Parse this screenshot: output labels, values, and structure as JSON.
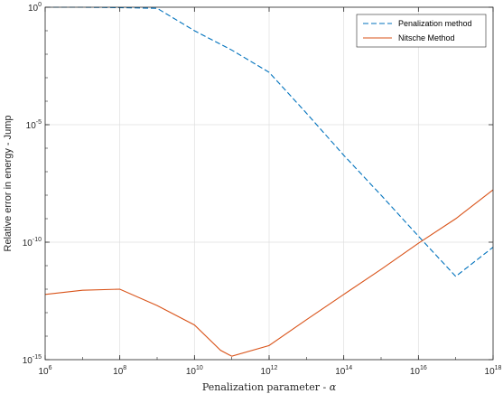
{
  "chart_data": {
    "type": "line",
    "xscale": "log",
    "yscale": "log",
    "xlim": [
      1000000.0,
      1e+18
    ],
    "ylim": [
      1e-15,
      1
    ],
    "xticks": [
      {
        "base": "10",
        "exp": "6",
        "value": 1000000.0
      },
      {
        "base": "10",
        "exp": "8",
        "value": 100000000.0
      },
      {
        "base": "10",
        "exp": "10",
        "value": 10000000000.0
      },
      {
        "base": "10",
        "exp": "12",
        "value": 1000000000000.0
      },
      {
        "base": "10",
        "exp": "14",
        "value": 100000000000000.0
      },
      {
        "base": "10",
        "exp": "16",
        "value": 1e+16
      },
      {
        "base": "10",
        "exp": "18",
        "value": 1e+18
      }
    ],
    "yticks": [
      {
        "base": "10",
        "exp": "0",
        "value": 1
      },
      {
        "base": "10",
        "exp": "-5",
        "value": 1e-05
      },
      {
        "base": "10",
        "exp": "-10",
        "value": 1e-10
      },
      {
        "base": "10",
        "exp": "-15",
        "value": 1e-15
      }
    ],
    "xlabel_text": "Penalization parameter - ",
    "xlabel_symbol": "α",
    "ylabel": "Relative error in energy - Jump",
    "grid": true,
    "legend_position": "top-right",
    "series": [
      {
        "name": "Penalization method",
        "color": "#0072BD",
        "dash": "dashed",
        "x": [
          1000000.0,
          10000000.0,
          100000000.0,
          1000000000.0,
          10000000000.0,
          100000000000.0,
          1000000000000.0,
          10000000000000.0,
          100000000000000.0,
          1000000000000000.0,
          1e+16,
          1e+17,
          1e+18
        ],
        "y": [
          1,
          1,
          0.96,
          0.9,
          0.1,
          0.015,
          0.0017,
          3.1e-05,
          5e-07,
          1e-08,
          1.8e-10,
          3.5e-12,
          6.1e-11
        ]
      },
      {
        "name": "Nitsche Method",
        "color": "#D95319",
        "dash": "solid",
        "x": [
          1000000.0,
          10000000.0,
          100000000.0,
          1000000000.0,
          10000000000.0,
          50000000000.0,
          100000000000.0,
          1000000000000.0,
          10000000000000.0,
          100000000000000.0,
          1000000000000000.0,
          1e+16,
          1e+17,
          1e+18
        ],
        "y": [
          6e-13,
          9e-13,
          1e-12,
          2e-13,
          3e-14,
          2.5e-15,
          1.4e-15,
          4e-15,
          5e-14,
          6e-13,
          7e-12,
          9e-11,
          1e-09,
          1.7e-08
        ]
      }
    ]
  }
}
